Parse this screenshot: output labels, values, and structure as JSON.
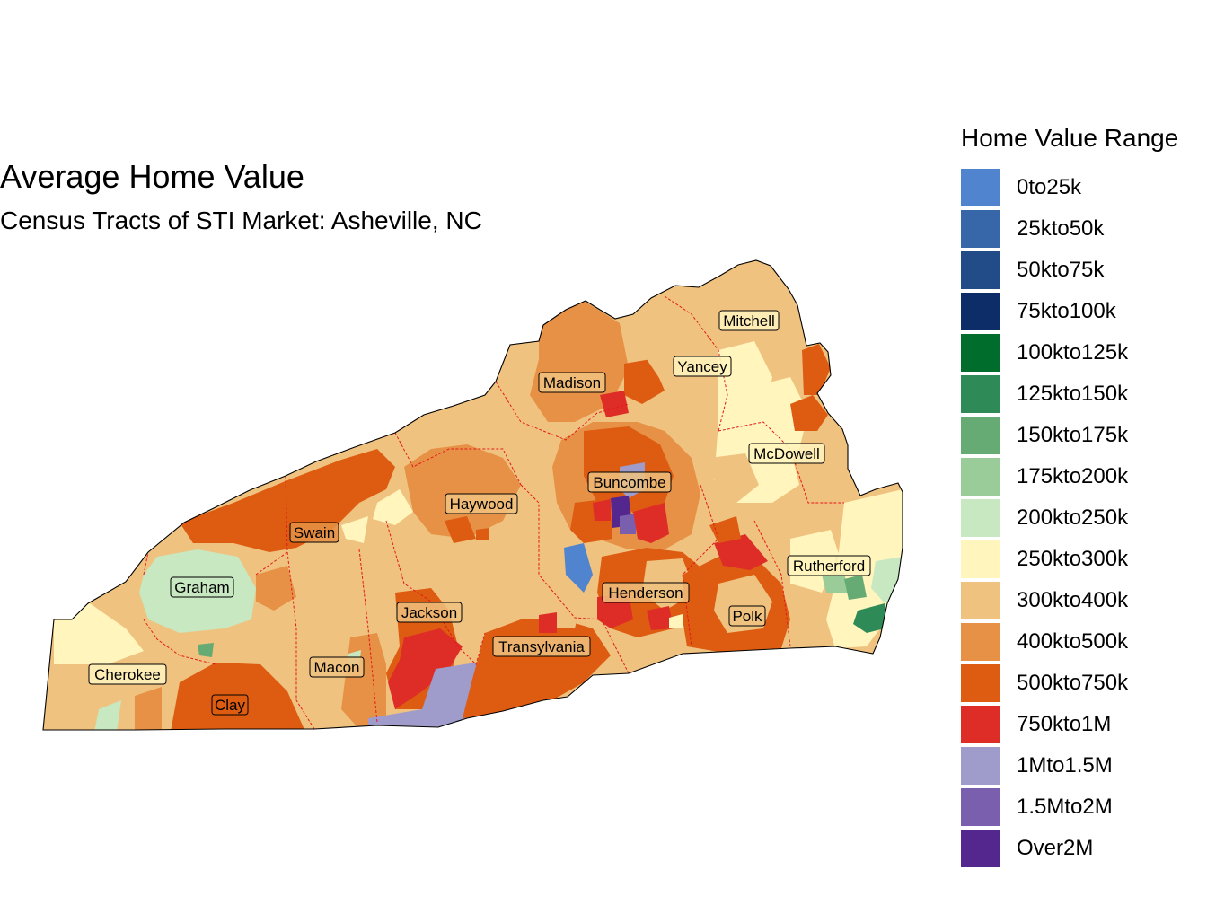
{
  "map": {
    "title": "Average Home Value",
    "subtitle": "Census Tracts of STI Market: Asheville, NC",
    "legend_title": "Home Value Range",
    "legend": [
      {
        "label": "0to25k",
        "color": "#5084cf"
      },
      {
        "label": "25kto50k",
        "color": "#3767a9"
      },
      {
        "label": "50kto75k",
        "color": "#224c88"
      },
      {
        "label": "75kto100k",
        "color": "#0c2d68"
      },
      {
        "label": "100kto125k",
        "color": "#006d2c"
      },
      {
        "label": "125kto150k",
        "color": "#2e8b57"
      },
      {
        "label": "150kto175k",
        "color": "#66ab74"
      },
      {
        "label": "175kto200k",
        "color": "#99cc99"
      },
      {
        "label": "200kto250k",
        "color": "#c7e8c1"
      },
      {
        "label": "250kto300k",
        "color": "#fff5bd"
      },
      {
        "label": "300kto400k",
        "color": "#f0c27f"
      },
      {
        "label": "400kto500k",
        "color": "#e69145"
      },
      {
        "label": "500kto750k",
        "color": "#dd5c11"
      },
      {
        "label": "750kto1M",
        "color": "#de2d26"
      },
      {
        "label": "1Mto1.5M",
        "color": "#9f9bcb"
      },
      {
        "label": "1.5Mto2M",
        "color": "#7a5fae"
      },
      {
        "label": "Over2M",
        "color": "#54278f"
      }
    ],
    "counties": [
      {
        "name": "Mitchell"
      },
      {
        "name": "Yancey"
      },
      {
        "name": "Madison"
      },
      {
        "name": "McDowell"
      },
      {
        "name": "Buncombe"
      },
      {
        "name": "Haywood"
      },
      {
        "name": "Swain"
      },
      {
        "name": "Rutherford"
      },
      {
        "name": "Graham"
      },
      {
        "name": "Henderson"
      },
      {
        "name": "Jackson"
      },
      {
        "name": "Polk"
      },
      {
        "name": "Transylvania"
      },
      {
        "name": "Macon"
      },
      {
        "name": "Cherokee"
      },
      {
        "name": "Clay"
      }
    ]
  }
}
